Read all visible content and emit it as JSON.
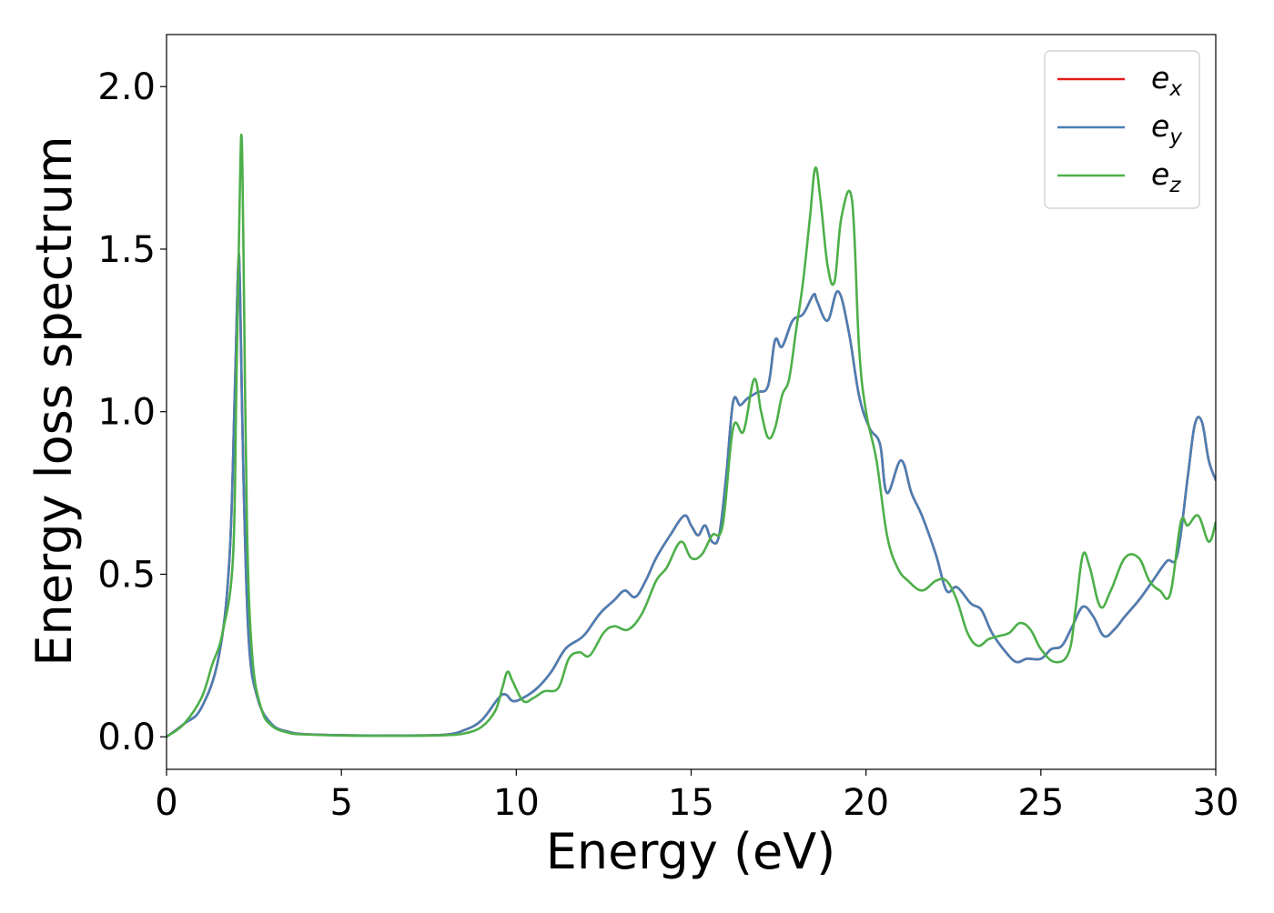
{
  "chart_data": {
    "type": "line",
    "title": "",
    "xlabel": "Energy (eV)",
    "ylabel": "Energy loss spectrum",
    "xlim": [
      0,
      30
    ],
    "ylim": [
      -0.1,
      2.16
    ],
    "xticks": [
      0,
      5,
      10,
      15,
      20,
      25,
      30
    ],
    "xtick_labels": [
      "0",
      "5",
      "10",
      "15",
      "20",
      "25",
      "30"
    ],
    "yticks": [
      0.0,
      0.5,
      1.0,
      1.5,
      2.0
    ],
    "ytick_labels": [
      "0.0",
      "0.5",
      "1.0",
      "1.5",
      "2.0"
    ],
    "grid": false,
    "legend_position": "top-right",
    "series": [
      {
        "name": "e_x",
        "legend_base": "e",
        "legend_sub": "x",
        "color": "#e41a1c",
        "x": [
          0,
          0.5,
          1.0,
          1.5,
          1.8,
          1.95,
          2.05,
          2.1,
          2.2,
          2.35,
          2.6,
          3.0,
          3.5,
          4,
          5,
          6,
          7,
          8,
          8.5,
          9,
          9.5,
          9.7,
          9.9,
          10.2,
          10.6,
          11,
          11.4,
          11.8,
          12,
          12.4,
          12.8,
          13.1,
          13.4,
          13.7,
          14.0,
          14.4,
          14.8,
          15.0,
          15.2,
          15.4,
          15.6,
          15.8,
          16.0,
          16.2,
          16.4,
          16.6,
          16.9,
          17.2,
          17.4,
          17.6,
          17.9,
          18.2,
          18.5,
          18.6,
          18.9,
          19.2,
          19.5,
          19.8,
          20.1,
          20.4,
          20.6,
          21.0,
          21.3,
          21.6,
          22.0,
          22.3,
          22.6,
          23.0,
          23.3,
          23.6,
          24.0,
          24.3,
          24.6,
          25.0,
          25.3,
          25.6,
          25.9,
          26.2,
          26.5,
          26.8,
          27.1,
          27.4,
          27.8,
          28.2,
          28.6,
          28.9,
          29.2,
          29.4,
          29.6,
          29.8,
          30.0
        ],
        "values": [
          0.0,
          0.04,
          0.09,
          0.25,
          0.55,
          1.05,
          1.45,
          1.38,
          0.8,
          0.3,
          0.12,
          0.04,
          0.015,
          0.008,
          0.005,
          0.004,
          0.004,
          0.007,
          0.02,
          0.05,
          0.12,
          0.13,
          0.11,
          0.12,
          0.15,
          0.2,
          0.27,
          0.3,
          0.32,
          0.38,
          0.42,
          0.45,
          0.43,
          0.48,
          0.55,
          0.62,
          0.68,
          0.65,
          0.62,
          0.65,
          0.6,
          0.62,
          0.8,
          1.03,
          1.02,
          1.04,
          1.06,
          1.08,
          1.22,
          1.2,
          1.28,
          1.3,
          1.36,
          1.34,
          1.28,
          1.37,
          1.25,
          1.05,
          0.95,
          0.9,
          0.75,
          0.85,
          0.75,
          0.68,
          0.56,
          0.45,
          0.46,
          0.41,
          0.39,
          0.32,
          0.26,
          0.23,
          0.24,
          0.24,
          0.27,
          0.28,
          0.34,
          0.4,
          0.37,
          0.31,
          0.33,
          0.37,
          0.42,
          0.48,
          0.54,
          0.56,
          0.8,
          0.96,
          0.97,
          0.85,
          0.79
        ]
      },
      {
        "name": "e_y",
        "legend_base": "e",
        "legend_sub": "y",
        "color": "#4a7fb4",
        "x": [
          0,
          0.5,
          1.0,
          1.5,
          1.8,
          1.95,
          2.05,
          2.1,
          2.2,
          2.35,
          2.6,
          3.0,
          3.5,
          4,
          5,
          6,
          7,
          8,
          8.5,
          9,
          9.5,
          9.7,
          9.9,
          10.2,
          10.6,
          11,
          11.4,
          11.8,
          12,
          12.4,
          12.8,
          13.1,
          13.4,
          13.7,
          14.0,
          14.4,
          14.8,
          15.0,
          15.2,
          15.4,
          15.6,
          15.8,
          16.0,
          16.2,
          16.4,
          16.6,
          16.9,
          17.2,
          17.4,
          17.6,
          17.9,
          18.2,
          18.5,
          18.6,
          18.9,
          19.2,
          19.5,
          19.8,
          20.1,
          20.4,
          20.6,
          21.0,
          21.3,
          21.6,
          22.0,
          22.3,
          22.6,
          23.0,
          23.3,
          23.6,
          24.0,
          24.3,
          24.6,
          25.0,
          25.3,
          25.6,
          25.9,
          26.2,
          26.5,
          26.8,
          27.1,
          27.4,
          27.8,
          28.2,
          28.6,
          28.9,
          29.2,
          29.4,
          29.6,
          29.8,
          30.0
        ],
        "values": [
          0.0,
          0.04,
          0.09,
          0.25,
          0.55,
          1.05,
          1.45,
          1.38,
          0.8,
          0.3,
          0.12,
          0.04,
          0.015,
          0.008,
          0.005,
          0.004,
          0.004,
          0.007,
          0.02,
          0.05,
          0.12,
          0.13,
          0.11,
          0.12,
          0.15,
          0.2,
          0.27,
          0.3,
          0.32,
          0.38,
          0.42,
          0.45,
          0.43,
          0.48,
          0.55,
          0.62,
          0.68,
          0.65,
          0.62,
          0.65,
          0.6,
          0.62,
          0.8,
          1.03,
          1.02,
          1.04,
          1.06,
          1.08,
          1.22,
          1.2,
          1.28,
          1.3,
          1.36,
          1.34,
          1.28,
          1.37,
          1.25,
          1.05,
          0.95,
          0.9,
          0.75,
          0.85,
          0.75,
          0.68,
          0.56,
          0.45,
          0.46,
          0.41,
          0.39,
          0.32,
          0.26,
          0.23,
          0.24,
          0.24,
          0.27,
          0.28,
          0.34,
          0.4,
          0.37,
          0.31,
          0.33,
          0.37,
          0.42,
          0.48,
          0.54,
          0.56,
          0.8,
          0.96,
          0.97,
          0.85,
          0.79
        ]
      },
      {
        "name": "e_z",
        "legend_base": "e",
        "legend_sub": "z",
        "color": "#4daf4a",
        "x": [
          0,
          0.5,
          1.0,
          1.3,
          1.6,
          1.9,
          2.0,
          2.1,
          2.15,
          2.2,
          2.3,
          2.45,
          2.7,
          3.0,
          3.5,
          4,
          5,
          6,
          7,
          8,
          8.5,
          9,
          9.4,
          9.6,
          9.75,
          9.9,
          10.2,
          10.5,
          10.8,
          11.2,
          11.5,
          11.8,
          12.1,
          12.5,
          12.8,
          13.2,
          13.6,
          14.0,
          14.3,
          14.7,
          15.0,
          15.3,
          15.6,
          15.9,
          16.2,
          16.5,
          16.8,
          17.0,
          17.2,
          17.4,
          17.6,
          17.8,
          18.0,
          18.2,
          18.4,
          18.55,
          18.7,
          18.9,
          19.1,
          19.3,
          19.6,
          19.8,
          20.0,
          20.3,
          20.6,
          20.9,
          21.2,
          21.6,
          22.0,
          22.3,
          22.6,
          22.9,
          23.2,
          23.5,
          23.8,
          24.1,
          24.4,
          24.7,
          25.0,
          25.4,
          25.8,
          26.0,
          26.2,
          26.4,
          26.7,
          27.0,
          27.4,
          27.8,
          28.1,
          28.4,
          28.7,
          29.0,
          29.2,
          29.5,
          29.8,
          30.0
        ],
        "values": [
          0.0,
          0.04,
          0.12,
          0.22,
          0.32,
          0.55,
          1.1,
          1.7,
          1.84,
          1.5,
          0.65,
          0.25,
          0.09,
          0.035,
          0.012,
          0.007,
          0.004,
          0.003,
          0.003,
          0.005,
          0.01,
          0.03,
          0.08,
          0.15,
          0.2,
          0.17,
          0.11,
          0.12,
          0.14,
          0.15,
          0.24,
          0.26,
          0.25,
          0.32,
          0.34,
          0.33,
          0.38,
          0.48,
          0.52,
          0.6,
          0.55,
          0.56,
          0.62,
          0.65,
          0.95,
          0.94,
          1.1,
          1.0,
          0.92,
          0.95,
          1.05,
          1.1,
          1.25,
          1.4,
          1.6,
          1.75,
          1.65,
          1.45,
          1.4,
          1.6,
          1.65,
          1.2,
          1.0,
          0.85,
          0.62,
          0.52,
          0.48,
          0.45,
          0.48,
          0.48,
          0.42,
          0.32,
          0.28,
          0.3,
          0.31,
          0.32,
          0.35,
          0.33,
          0.27,
          0.23,
          0.26,
          0.4,
          0.56,
          0.52,
          0.4,
          0.45,
          0.55,
          0.55,
          0.48,
          0.45,
          0.44,
          0.66,
          0.65,
          0.68,
          0.6,
          0.66
        ]
      }
    ]
  }
}
